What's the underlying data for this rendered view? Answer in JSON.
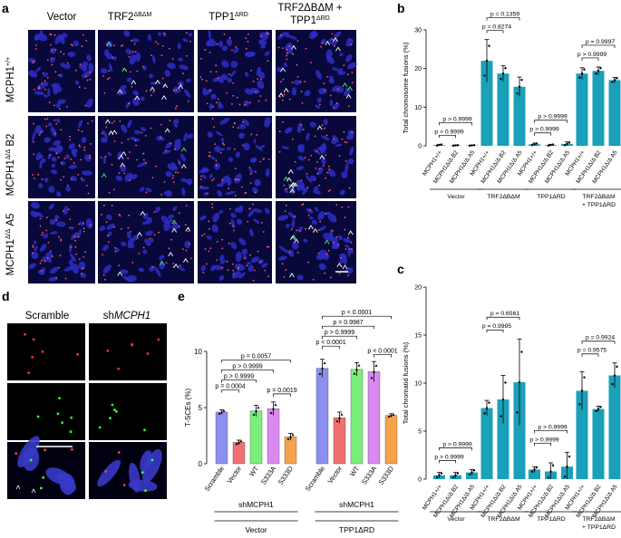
{
  "panels": {
    "a": {
      "letter": "a",
      "columns": [
        "Vector",
        "TRF2",
        "TPP1",
        "TRF2ΔBΔM +"
      ],
      "columns_sup": [
        "",
        "ΔBΔM",
        "ΔRD",
        ""
      ],
      "column4_line2": "TPP1",
      "column4_line2_sup": "ΔRD",
      "rows": [
        "MCPH1",
        "MCPH1",
        "MCPH1"
      ],
      "rows_sup": [
        "+/+",
        "Δ/Δ",
        "Δ/Δ"
      ],
      "rows_suffix": [
        "",
        " B2",
        " A5"
      ]
    },
    "b": {
      "letter": "b"
    },
    "c": {
      "letter": "c"
    },
    "d": {
      "letter": "d",
      "col1": "Scramble",
      "col2_prefix": "sh",
      "col2_gene": "MCPH1"
    },
    "e": {
      "letter": "e"
    }
  },
  "groups": {
    "vector": "Vector",
    "trf2": "TRF2",
    "trf2_sup": "ΔBΔM",
    "tpp1": "TPP1",
    "tpp1_sup": "ΔRD",
    "combo_line2": "+ TPP1",
    "combo_line2_sup": "ΔRD"
  },
  "genotype_labels": [
    "MCPH1+/+",
    "MCPH1Δ/Δ B2",
    "MCPH1Δ/Δ A5"
  ],
  "chart_data": [
    {
      "id": "b",
      "type": "bar",
      "ylabel": "Total chromosome fusions (%)",
      "ylim": [
        0,
        30
      ],
      "yticks": [
        0,
        10,
        20,
        30
      ],
      "groups": [
        "Vector",
        "TRF2ΔBΔM",
        "TPP1ΔRD",
        "TRF2ΔBΔM + TPP1ΔRD"
      ],
      "categories": [
        "MCPH1+/+",
        "MCPH1Δ/Δ B2",
        "MCPH1Δ/Δ A5"
      ],
      "values": [
        [
          0.2,
          0.1,
          0.1
        ],
        [
          22.0,
          18.7,
          15.3
        ],
        [
          0.4,
          0.2,
          0.5
        ],
        [
          18.7,
          19.4,
          17.0
        ]
      ],
      "errors": [
        [
          0.2,
          0.1,
          0.1
        ],
        [
          5.5,
          2.0,
          2.5
        ],
        [
          0.3,
          0.2,
          0.5
        ],
        [
          1.5,
          1.0,
          0.7
        ]
      ],
      "annotations": [
        {
          "group": 0,
          "pairs": [
            [
              0,
              1,
              "p > 0.9999"
            ],
            [
              0,
              2,
              "p > 0.9999"
            ]
          ]
        },
        {
          "group": 1,
          "pairs": [
            [
              0,
              1,
              "p = 0.8274"
            ],
            [
              0,
              2,
              "p = 0.1359"
            ]
          ]
        },
        {
          "group": 2,
          "pairs": [
            [
              0,
              1,
              "p > 0.9999"
            ],
            [
              0,
              2,
              "p > 0.9999"
            ]
          ]
        },
        {
          "group": 3,
          "pairs": [
            [
              0,
              1,
              "p > 0.9999"
            ],
            [
              0,
              2,
              "p = 0.9997"
            ]
          ]
        }
      ],
      "color": "#1aa0b8"
    },
    {
      "id": "c",
      "type": "bar",
      "ylabel": "Total chromatid fusions (%)",
      "ylim": [
        0,
        20
      ],
      "yticks": [
        0,
        5,
        10,
        15,
        20
      ],
      "groups": [
        "Vector",
        "TRF2ΔBΔM",
        "TPP1ΔRD",
        "TRF2ΔBΔM + TPP1ΔRD"
      ],
      "categories": [
        "MCPH1+/+",
        "MCPH1Δ/Δ B2",
        "MCPH1Δ/Δ A5"
      ],
      "values": [
        [
          0.4,
          0.4,
          0.7
        ],
        [
          7.4,
          8.3,
          10.1
        ],
        [
          1.0,
          0.8,
          1.3
        ],
        [
          9.2,
          7.3,
          10.8
        ]
      ],
      "errors": [
        [
          0.3,
          0.3,
          0.3
        ],
        [
          0.8,
          2.5,
          4.5
        ],
        [
          0.3,
          0.9,
          1.5
        ],
        [
          2.0,
          0.3,
          1.3
        ]
      ],
      "annotations": [
        {
          "group": 0,
          "pairs": [
            [
              0,
              1,
              "p > 0.9999"
            ],
            [
              0,
              2,
              "p > 0.9999"
            ]
          ]
        },
        {
          "group": 1,
          "pairs": [
            [
              0,
              1,
              "p = 0.9995"
            ],
            [
              0,
              2,
              "p = 0.6561"
            ]
          ]
        },
        {
          "group": 2,
          "pairs": [
            [
              0,
              1,
              "p > 0.9999"
            ],
            [
              0,
              2,
              "p > 0.9999"
            ]
          ]
        },
        {
          "group": 3,
          "pairs": [
            [
              0,
              1,
              "p = 0.9575"
            ],
            [
              0,
              2,
              "p = 0.9924"
            ]
          ]
        }
      ],
      "color": "#1aa0b8"
    },
    {
      "id": "e",
      "type": "bar",
      "ylabel": "T-SCEs (%)",
      "ylim": [
        0,
        10
      ],
      "yticks": [
        0,
        5,
        10
      ],
      "categories": [
        "Scramble",
        "Vector",
        "WT",
        "S333A",
        "S333D",
        "Scramble",
        "Vector",
        "WT",
        "S333A",
        "S333D"
      ],
      "values": [
        4.6,
        1.9,
        4.7,
        4.9,
        2.4,
        8.5,
        4.1,
        8.4,
        8.2,
        4.3
      ],
      "errors": [
        0.2,
        0.2,
        0.5,
        0.6,
        0.3,
        0.8,
        0.5,
        0.6,
        0.9,
        0.15
      ],
      "colors": [
        "#8a8ff0",
        "#f07070",
        "#7aee7a",
        "#d98af0",
        "#f5a24a",
        "#8a8ff0",
        "#f07070",
        "#7aee7a",
        "#d98af0",
        "#f5a24a"
      ],
      "shRNA_label": "shMCPH1",
      "groups": [
        "Vector",
        "TPP1ΔRD"
      ],
      "annotations": [
        [
          0,
          1,
          "p = 0.0004"
        ],
        [
          0,
          2,
          "p > 0.9999"
        ],
        [
          0,
          3,
          "p > 0.9999"
        ],
        [
          0,
          4,
          "p = 0.0057"
        ],
        [
          3,
          4,
          "p = 0.0019"
        ],
        [
          5,
          6,
          "p < 0.0001"
        ],
        [
          5,
          7,
          "p > 0.9999"
        ],
        [
          5,
          8,
          "p = 0.9987"
        ],
        [
          5,
          9,
          "p < 0.0001"
        ],
        [
          8,
          9,
          "p < 0.0001"
        ]
      ]
    }
  ]
}
